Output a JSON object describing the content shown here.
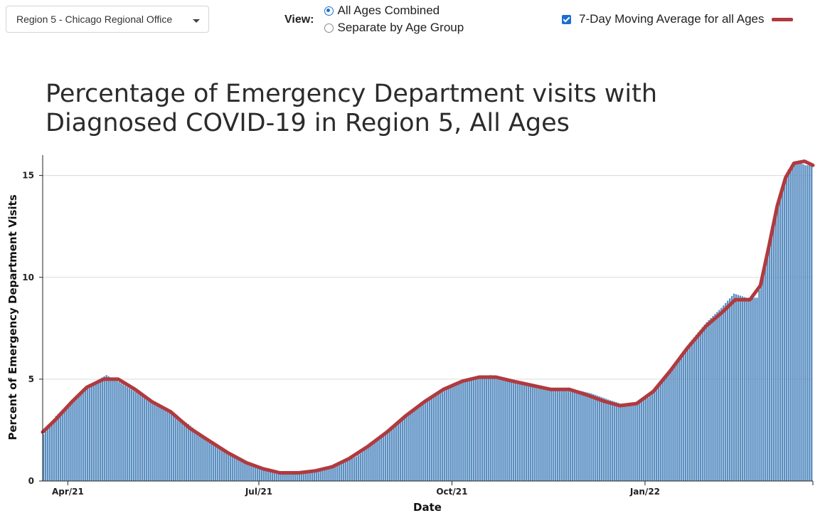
{
  "controls": {
    "region_select": {
      "value": "Region 5 - Chicago Regional Office"
    },
    "view": {
      "label": "View:",
      "options": [
        {
          "label": "All Ages Combined",
          "selected": true
        },
        {
          "label": "Separate by Age Group",
          "selected": false
        }
      ]
    },
    "moving_average_toggle": {
      "label": "7-Day Moving Average for all Ages",
      "checked": true
    }
  },
  "chart_data": {
    "type": "bar",
    "title": "Percentage of Emergency Department visits with Diagnosed COVID-19 in Region 5, All Ages",
    "xlabel": "Date",
    "ylabel": "Percent of Emergency Department Visits",
    "x_ticks": [
      {
        "date": "2021-04-01",
        "label": "Apr/21"
      },
      {
        "date": "2021-07-01",
        "label": "Jul/21"
      },
      {
        "date": "2021-10-01",
        "label": "Oct/21"
      },
      {
        "date": "2022-01-01",
        "label": "Jan/22"
      }
    ],
    "y_ticks": [
      0,
      5,
      10,
      15
    ],
    "xlim": [
      "2021-03-20",
      "2022-03-22"
    ],
    "ylim": [
      0,
      16
    ],
    "grid": "horizontal",
    "colors": {
      "bars": "#5b8fc2",
      "moving_average": "#b03a3e"
    },
    "series": [
      {
        "type": "bar",
        "description": "daily percentage, interpolated from keypoints",
        "keypoints": [
          [
            "2021-03-20",
            2.3
          ],
          [
            "2021-03-26",
            3.2
          ],
          [
            "2021-04-03",
            4.0
          ],
          [
            "2021-04-08",
            4.5
          ],
          [
            "2021-04-14",
            4.9
          ],
          [
            "2021-04-19",
            5.2
          ],
          [
            "2021-04-26",
            4.8
          ],
          [
            "2021-05-04",
            4.3
          ],
          [
            "2021-05-12",
            3.8
          ],
          [
            "2021-05-20",
            3.3
          ],
          [
            "2021-05-28",
            2.8
          ],
          [
            "2021-06-05",
            2.1
          ],
          [
            "2021-06-13",
            1.6
          ],
          [
            "2021-06-21",
            1.1
          ],
          [
            "2021-06-29",
            0.7
          ],
          [
            "2021-07-07",
            0.5
          ],
          [
            "2021-07-15",
            0.4
          ],
          [
            "2021-07-23",
            0.4
          ],
          [
            "2021-07-31",
            0.5
          ],
          [
            "2021-08-08",
            0.8
          ],
          [
            "2021-08-16",
            1.2
          ],
          [
            "2021-08-24",
            1.8
          ],
          [
            "2021-09-01",
            2.5
          ],
          [
            "2021-09-09",
            3.2
          ],
          [
            "2021-09-17",
            3.8
          ],
          [
            "2021-09-25",
            4.3
          ],
          [
            "2021-10-03",
            4.8
          ],
          [
            "2021-10-11",
            5.1
          ],
          [
            "2021-10-19",
            5.2
          ],
          [
            "2021-10-27",
            5.0
          ],
          [
            "2021-11-04",
            4.8
          ],
          [
            "2021-11-12",
            4.6
          ],
          [
            "2021-11-20",
            4.5
          ],
          [
            "2021-11-28",
            4.5
          ],
          [
            "2021-12-06",
            4.3
          ],
          [
            "2021-12-14",
            4.0
          ],
          [
            "2021-12-20",
            3.8
          ],
          [
            "2021-12-27",
            3.8
          ],
          [
            "2022-01-02",
            4.1
          ],
          [
            "2022-01-08",
            4.8
          ],
          [
            "2022-01-15",
            5.8
          ],
          [
            "2022-01-22",
            6.8
          ],
          [
            "2022-01-30",
            7.8
          ],
          [
            "2022-02-06",
            8.5
          ],
          [
            "2022-02-12",
            9.2
          ],
          [
            "2022-02-18",
            9.0
          ],
          [
            "2022-02-23",
            9.0
          ],
          [
            "2022-02-27",
            10.5
          ],
          [
            "2022-03-02",
            12.5
          ],
          [
            "2022-03-06",
            14.0
          ],
          [
            "2022-03-10",
            15.3
          ],
          [
            "2022-03-14",
            15.7
          ],
          [
            "2022-03-18",
            15.5
          ]
        ]
      },
      {
        "type": "line",
        "name": "7-Day Moving Average for all Ages",
        "keypoints": [
          [
            "2021-03-20",
            2.4
          ],
          [
            "2021-03-26",
            3.0
          ],
          [
            "2021-04-03",
            3.9
          ],
          [
            "2021-04-10",
            4.6
          ],
          [
            "2021-04-18",
            5.0
          ],
          [
            "2021-04-25",
            5.0
          ],
          [
            "2021-05-03",
            4.5
          ],
          [
            "2021-05-11",
            3.9
          ],
          [
            "2021-05-20",
            3.4
          ],
          [
            "2021-05-29",
            2.6
          ],
          [
            "2021-06-07",
            2.0
          ],
          [
            "2021-06-16",
            1.4
          ],
          [
            "2021-06-25",
            0.9
          ],
          [
            "2021-07-03",
            0.6
          ],
          [
            "2021-07-11",
            0.4
          ],
          [
            "2021-07-20",
            0.4
          ],
          [
            "2021-07-28",
            0.5
          ],
          [
            "2021-08-05",
            0.7
          ],
          [
            "2021-08-13",
            1.1
          ],
          [
            "2021-08-22",
            1.7
          ],
          [
            "2021-08-31",
            2.4
          ],
          [
            "2021-09-09",
            3.2
          ],
          [
            "2021-09-18",
            3.9
          ],
          [
            "2021-09-27",
            4.5
          ],
          [
            "2021-10-06",
            4.9
          ],
          [
            "2021-10-14",
            5.1
          ],
          [
            "2021-10-22",
            5.1
          ],
          [
            "2021-10-30",
            4.9
          ],
          [
            "2021-11-08",
            4.7
          ],
          [
            "2021-11-17",
            4.5
          ],
          [
            "2021-11-26",
            4.5
          ],
          [
            "2021-12-05",
            4.2
          ],
          [
            "2021-12-13",
            3.9
          ],
          [
            "2021-12-20",
            3.7
          ],
          [
            "2021-12-28",
            3.8
          ],
          [
            "2022-01-05",
            4.4
          ],
          [
            "2022-01-13",
            5.4
          ],
          [
            "2022-01-21",
            6.5
          ],
          [
            "2022-01-30",
            7.6
          ],
          [
            "2022-02-07",
            8.3
          ],
          [
            "2022-02-13",
            8.9
          ],
          [
            "2022-02-20",
            8.9
          ],
          [
            "2022-02-25",
            9.6
          ],
          [
            "2022-03-01",
            11.5
          ],
          [
            "2022-03-05",
            13.5
          ],
          [
            "2022-03-09",
            14.9
          ],
          [
            "2022-03-13",
            15.6
          ],
          [
            "2022-03-18",
            15.7
          ],
          [
            "2022-03-22",
            15.5
          ]
        ]
      }
    ]
  }
}
